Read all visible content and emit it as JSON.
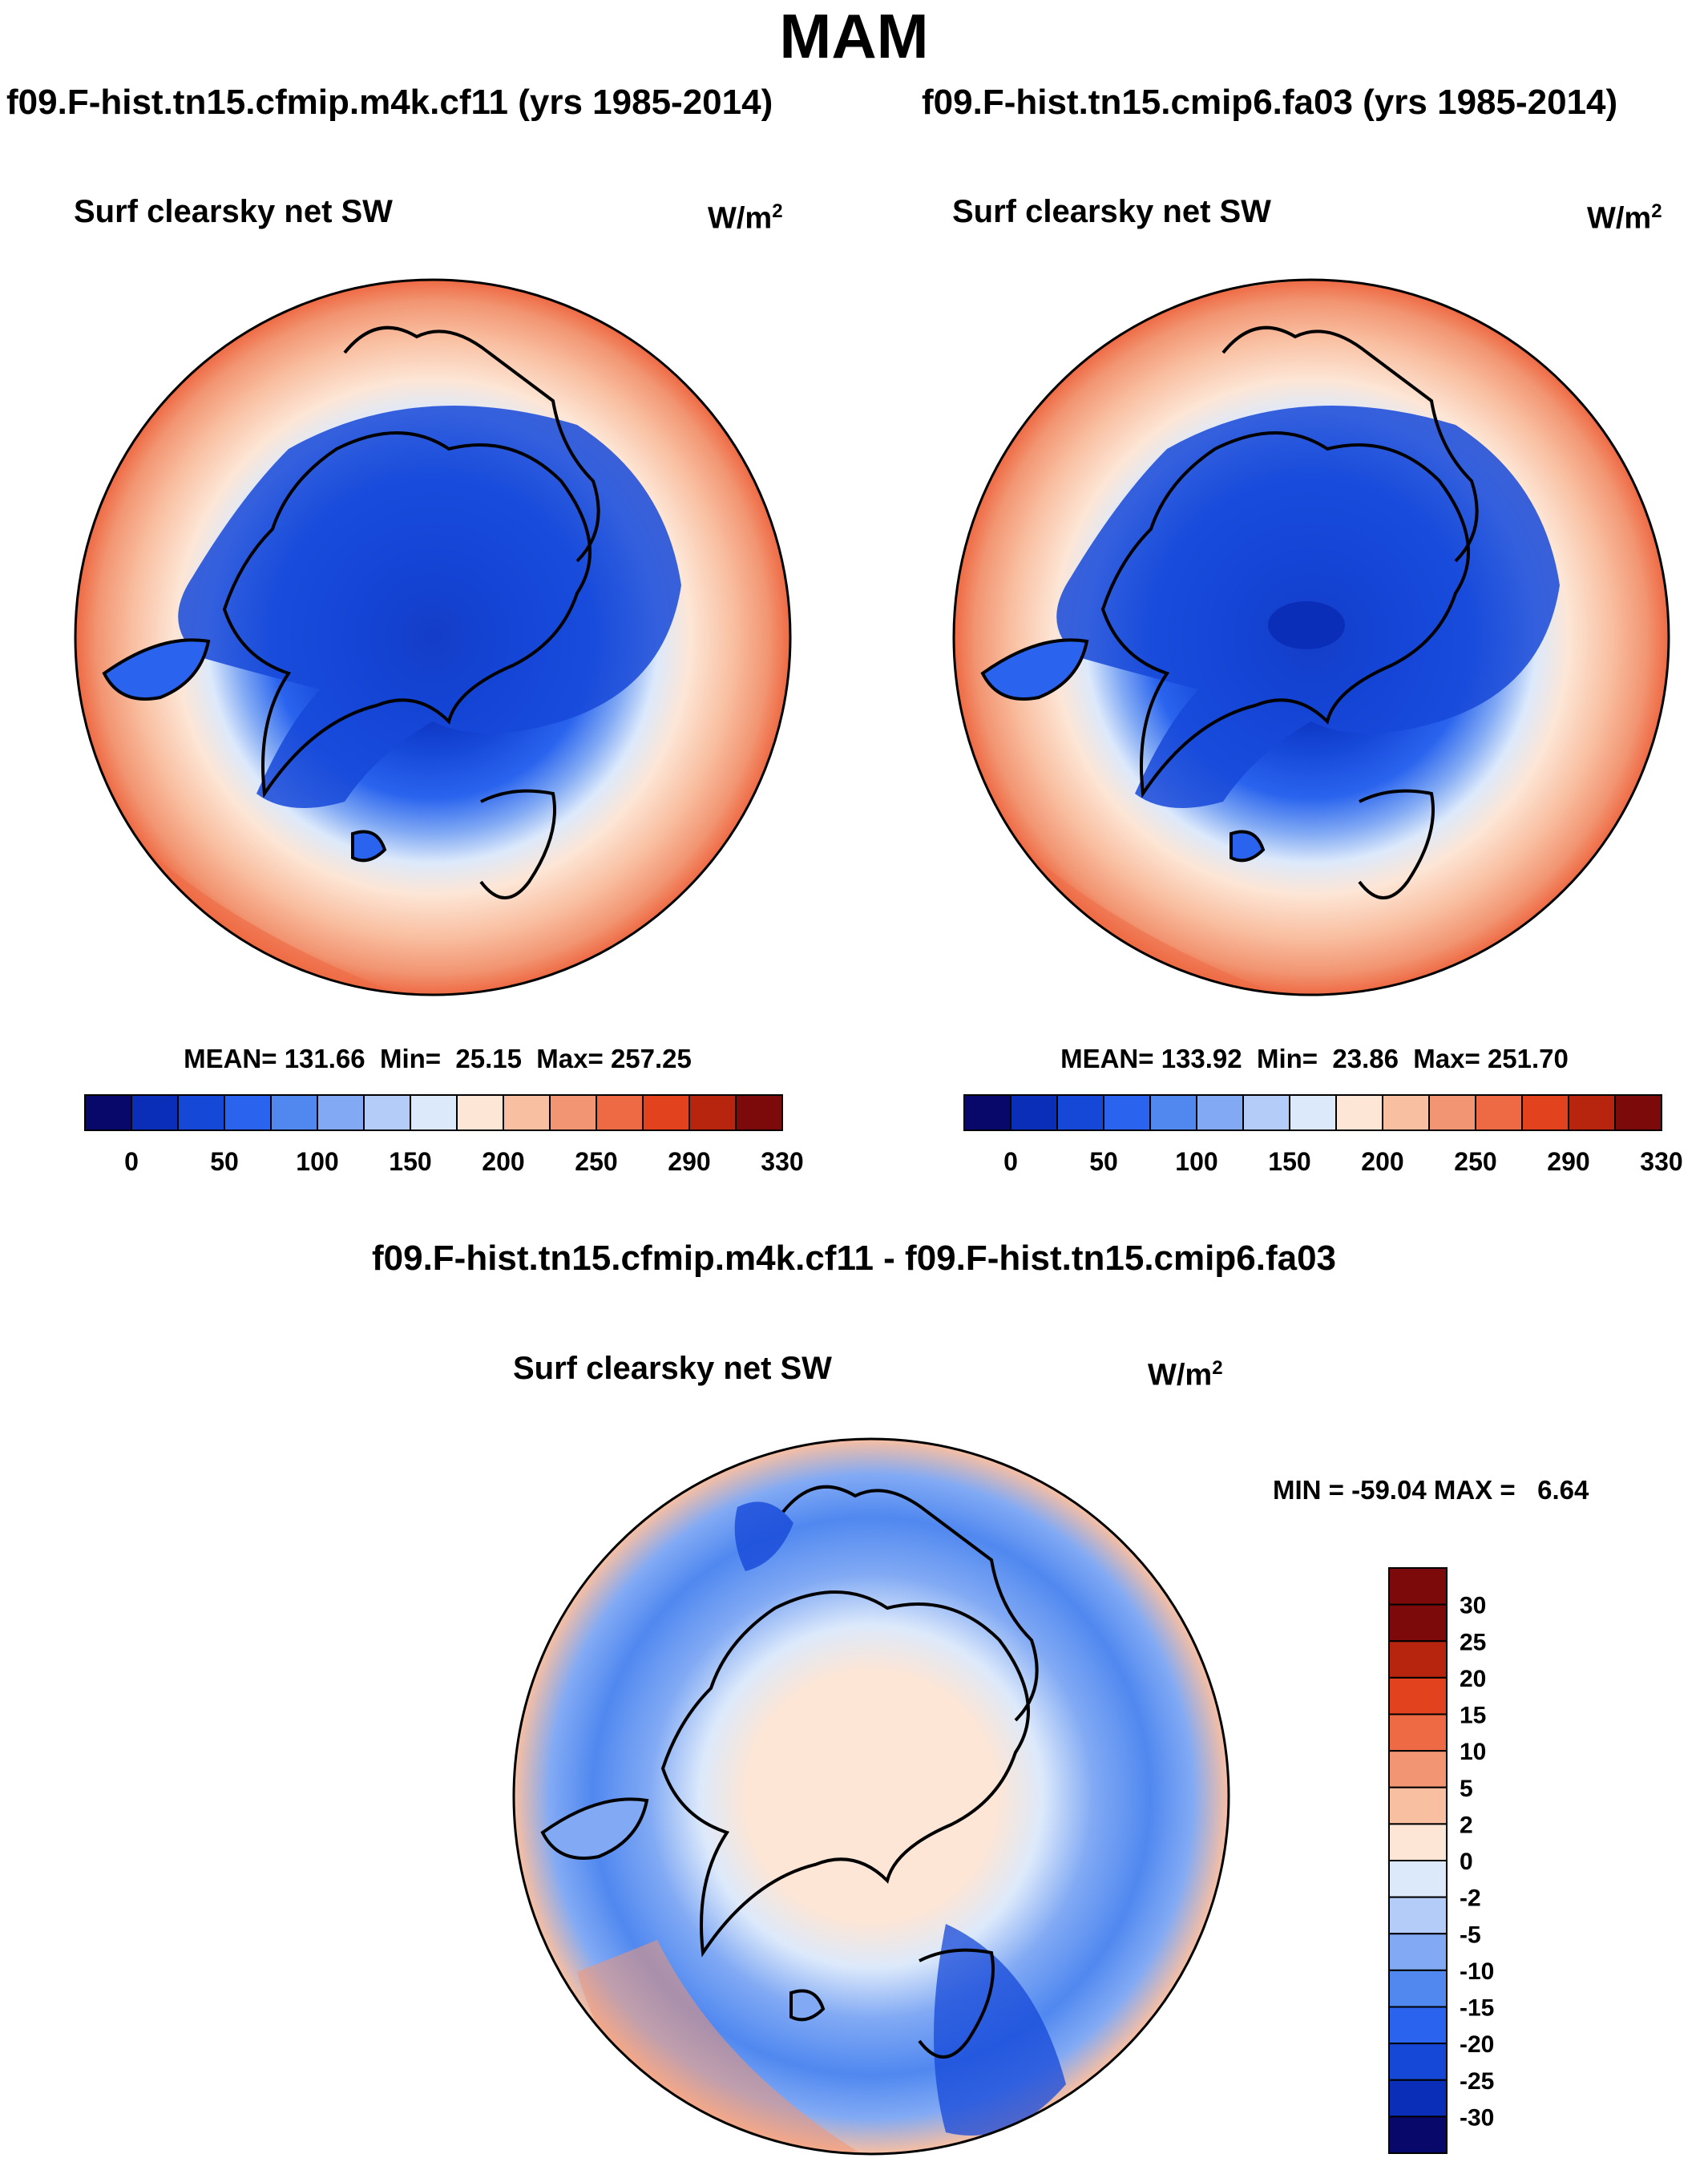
{
  "title": "MAM",
  "panels": [
    {
      "case_title": "f09.F-hist.tn15.cfmip.m4k.cf11 (yrs 1985-2014)",
      "plot_title": "Surf clearsky net SW",
      "units": "W/m",
      "units_sup": "2",
      "stats": "MEAN= 131.66  Min=  25.15  Max= 257.25"
    },
    {
      "case_title": "f09.F-hist.tn15.cmip6.fa03 (yrs 1985-2014)",
      "plot_title": "Surf clearsky net SW",
      "units": "W/m",
      "units_sup": "2",
      "stats": "MEAN= 133.92  Min=  23.86  Max= 251.70"
    }
  ],
  "diff_panel": {
    "case_title": "f09.F-hist.tn15.cfmip.m4k.cf11 - f09.F-hist.tn15.cmip6.fa03",
    "plot_title": "Surf clearsky net SW",
    "units": "W/m",
    "units_sup": "2",
    "stats": "MIN = -59.04 MAX =   6.64"
  },
  "chart_data": [
    {
      "type": "heatmap",
      "projection": "north-polar-stereographic",
      "title": "Surf clearsky net SW",
      "case": "f09.F-hist.tn15.cfmip.m4k.cf11 (yrs 1985-2014)",
      "units": "W/m2",
      "mean": 131.66,
      "min": 25.15,
      "max": 257.25,
      "colorbar_labels": [
        "0",
        "50",
        "100",
        "150",
        "200",
        "250",
        "290",
        "330"
      ],
      "colors": [
        "#08086b",
        "#0a2eb8",
        "#1648d8",
        "#2a64ee",
        "#5088f0",
        "#82aaf4",
        "#b4cdf8",
        "#dce9fb",
        "#fde6d6",
        "#f9bfa1",
        "#f29572",
        "#ee6a44",
        "#e2431e",
        "#b8250f",
        "#7d0a0a"
      ]
    },
    {
      "type": "heatmap",
      "projection": "north-polar-stereographic",
      "title": "Surf clearsky net SW",
      "case": "f09.F-hist.tn15.cmip6.fa03 (yrs 1985-2014)",
      "units": "W/m2",
      "mean": 133.92,
      "min": 23.86,
      "max": 251.7,
      "colorbar_labels": [
        "0",
        "50",
        "100",
        "150",
        "200",
        "250",
        "290",
        "330"
      ],
      "colors": [
        "#08086b",
        "#0a2eb8",
        "#1648d8",
        "#2a64ee",
        "#5088f0",
        "#82aaf4",
        "#b4cdf8",
        "#dce9fb",
        "#fde6d6",
        "#f9bfa1",
        "#f29572",
        "#ee6a44",
        "#e2431e",
        "#b8250f",
        "#7d0a0a"
      ]
    },
    {
      "type": "heatmap",
      "projection": "north-polar-stereographic",
      "title": "Surf clearsky net SW",
      "case": "f09.F-hist.tn15.cfmip.m4k.cf11 - f09.F-hist.tn15.cmip6.fa03",
      "units": "W/m2",
      "min": -59.04,
      "max": 6.64,
      "colorbar_labels": [
        "30",
        "25",
        "20",
        "15",
        "10",
        "5",
        "2",
        "0",
        "-2",
        "-5",
        "-10",
        "-15",
        "-20",
        "-25",
        "-30"
      ],
      "colors": [
        "#7d0a0a",
        "#b8250f",
        "#e2431e",
        "#ee6a44",
        "#f29572",
        "#f9bfa1",
        "#fde6d6",
        "#dce9fb",
        "#b4cdf8",
        "#82aaf4",
        "#5088f0",
        "#2a64ee",
        "#1648d8",
        "#0a2eb8",
        "#08086b"
      ]
    }
  ]
}
